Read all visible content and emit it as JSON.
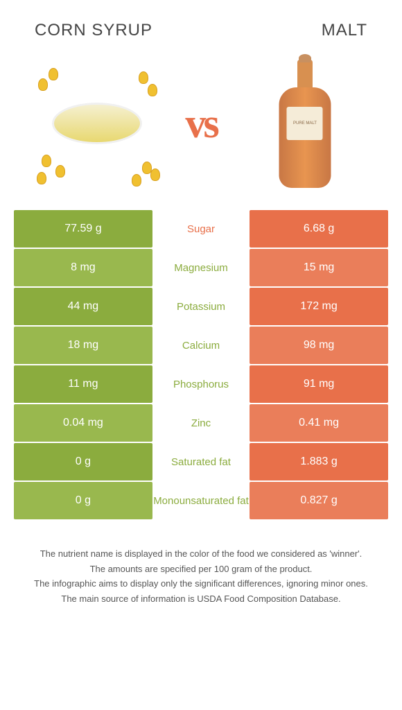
{
  "header": {
    "left_title": "CORN SYRUP",
    "right_title": "MALT"
  },
  "vs_label": "vs",
  "bottle_label_main": "PURE MALT",
  "colors": {
    "left": "#8bac3e",
    "left_alt": "#99b84e",
    "right": "#e8704a",
    "right_alt": "#ea7e5a",
    "mid_text_left": "#e8704a",
    "mid_text_right": "#8bac3e"
  },
  "rows": [
    {
      "nutrient": "Sugar",
      "left": "77.59 g",
      "right": "6.68 g",
      "winner": "left"
    },
    {
      "nutrient": "Magnesium",
      "left": "8 mg",
      "right": "15 mg",
      "winner": "right"
    },
    {
      "nutrient": "Potassium",
      "left": "44 mg",
      "right": "172 mg",
      "winner": "right"
    },
    {
      "nutrient": "Calcium",
      "left": "18 mg",
      "right": "98 mg",
      "winner": "right"
    },
    {
      "nutrient": "Phosphorus",
      "left": "11 mg",
      "right": "91 mg",
      "winner": "right"
    },
    {
      "nutrient": "Zinc",
      "left": "0.04 mg",
      "right": "0.41 mg",
      "winner": "right"
    },
    {
      "nutrient": "Saturated fat",
      "left": "0 g",
      "right": "1.883 g",
      "winner": "right"
    },
    {
      "nutrient": "Monounsaturated fat",
      "left": "0 g",
      "right": "0.827 g",
      "winner": "right"
    }
  ],
  "footer": {
    "line1": "The nutrient name is displayed in the color of the food we considered as 'winner'.",
    "line2": "The amounts are specified per 100 gram of the product.",
    "line3": "The infographic aims to display only the significant differences, ignoring minor ones.",
    "line4": "The main source of information is USDA Food Composition Database."
  }
}
